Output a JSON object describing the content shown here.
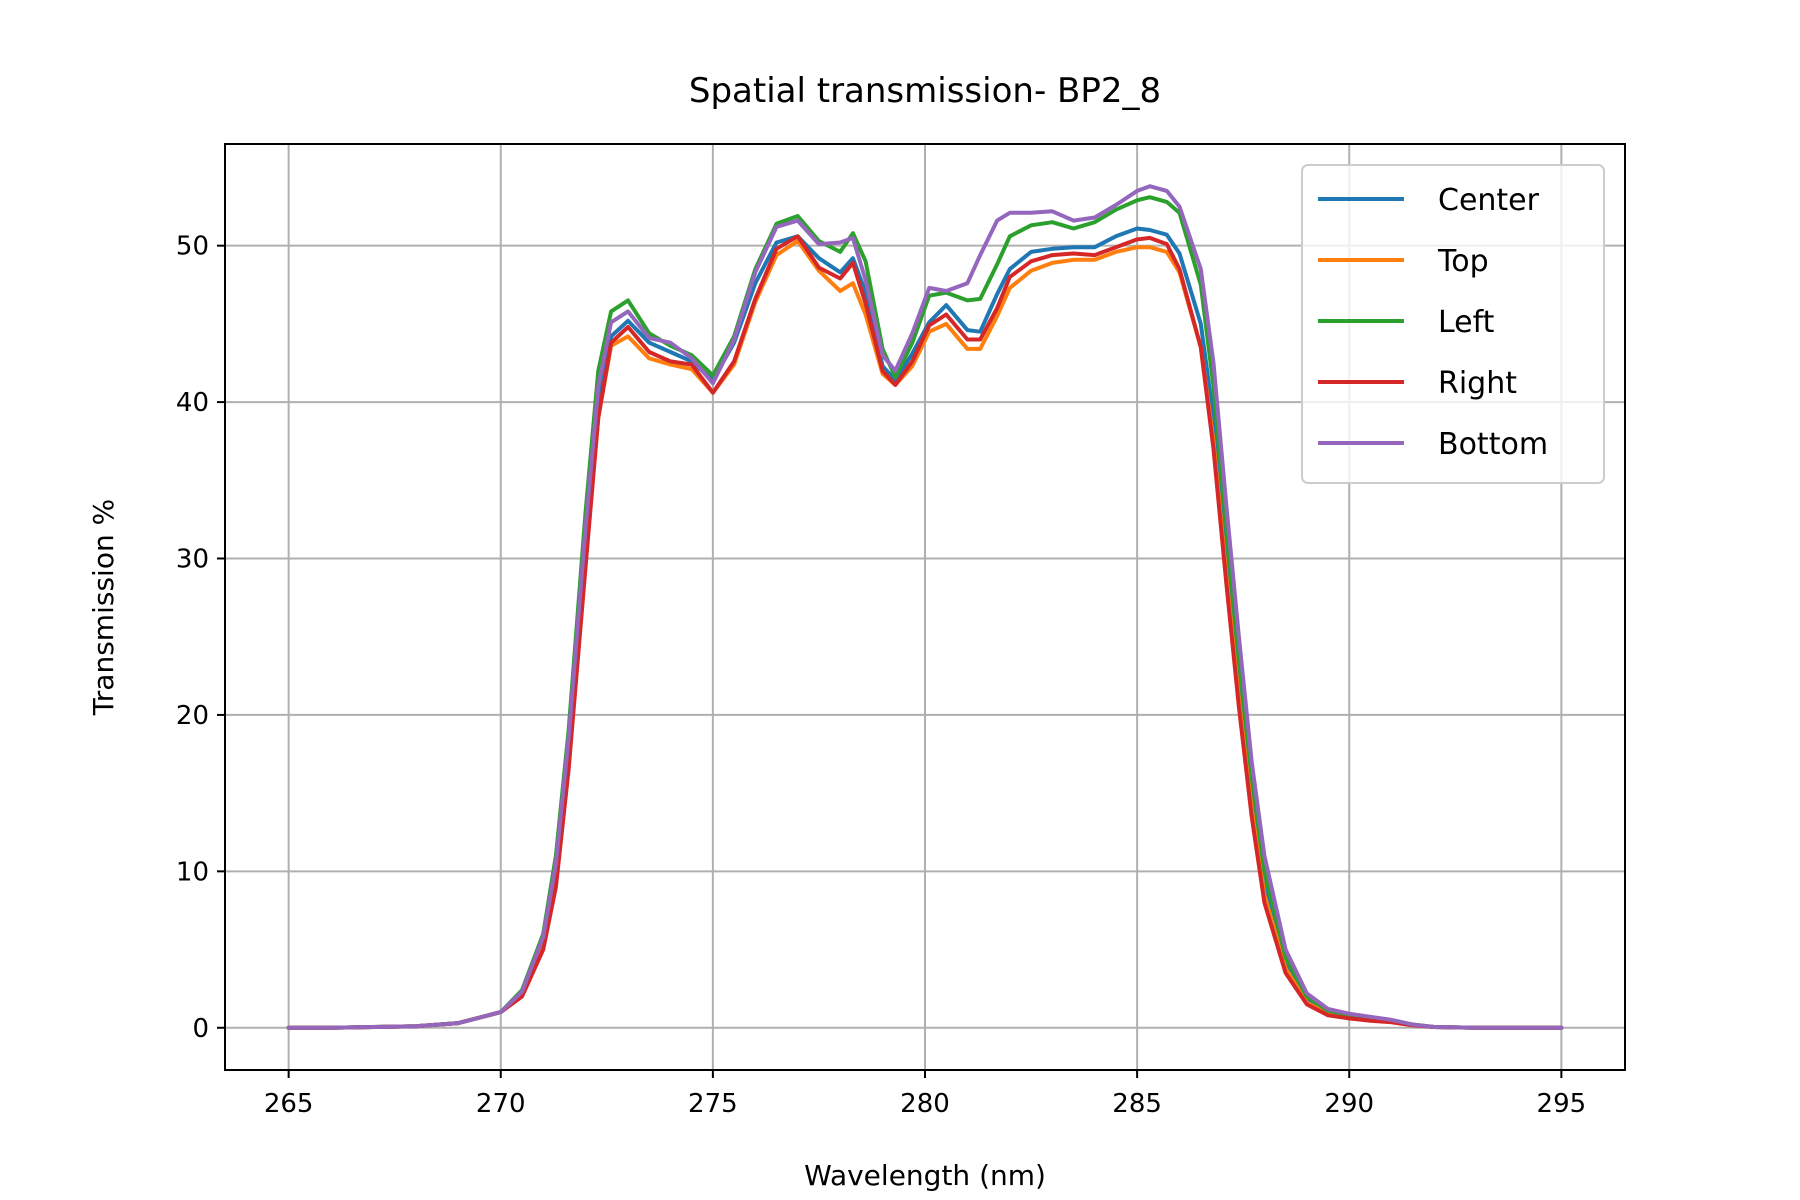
{
  "chart_data": {
    "type": "line",
    "title": "Spatial transmission- BP2_8",
    "xlabel": "Wavelength (nm)",
    "ylabel": "Transmission %",
    "xlim": [
      263.5,
      296.5
    ],
    "ylim": [
      -2.7,
      56.5
    ],
    "xticks": [
      265,
      270,
      275,
      280,
      285,
      290,
      295
    ],
    "yticks": [
      0,
      10,
      20,
      30,
      40,
      50
    ],
    "grid": true,
    "legend_position": "top-right",
    "series": [
      {
        "name": "Center",
        "color": "#1f77b4",
        "x": [
          265,
          266,
          267,
          268,
          269,
          270,
          270.5,
          271,
          271.3,
          271.6,
          272,
          272.3,
          272.6,
          273,
          273.5,
          274,
          274.5,
          275,
          275.5,
          276,
          276.5,
          277,
          277.5,
          278,
          278.3,
          278.6,
          279,
          279.3,
          279.7,
          280.1,
          280.5,
          281,
          281.3,
          281.7,
          282,
          282.5,
          283,
          283.5,
          284,
          284.5,
          285,
          285.3,
          285.7,
          286,
          286.5,
          286.8,
          287.1,
          287.4,
          287.7,
          288,
          288.5,
          289,
          289.5,
          290,
          290.5,
          291,
          291.5,
          292,
          293,
          294,
          295
        ],
        "y": [
          0,
          0,
          0.05,
          0.1,
          0.3,
          1.0,
          2.2,
          5.5,
          10,
          18,
          31,
          40,
          44.2,
          45.2,
          43.8,
          43.2,
          42.6,
          41.4,
          43.8,
          47.6,
          50.2,
          50.6,
          49.2,
          48.3,
          49.2,
          47,
          42.3,
          41.4,
          43.1,
          45.1,
          46.2,
          44.6,
          44.5,
          46.9,
          48.5,
          49.6,
          49.8,
          49.9,
          49.9,
          50.6,
          51.1,
          51,
          50.7,
          49.5,
          45,
          39,
          30,
          22,
          15,
          9,
          4,
          1.8,
          1,
          0.7,
          0.5,
          0.4,
          0.2,
          0.05,
          0,
          0,
          0
        ]
      },
      {
        "name": "Top",
        "color": "#ff7f0e",
        "x": [
          265,
          266,
          267,
          268,
          269,
          270,
          270.5,
          271,
          271.3,
          271.6,
          272,
          272.3,
          272.6,
          273,
          273.5,
          274,
          274.5,
          275,
          275.5,
          276,
          276.5,
          277,
          277.5,
          278,
          278.3,
          278.6,
          279,
          279.3,
          279.7,
          280.1,
          280.5,
          281,
          281.3,
          281.7,
          282,
          282.5,
          283,
          283.5,
          284,
          284.5,
          285,
          285.3,
          285.7,
          286,
          286.5,
          286.8,
          287.1,
          287.4,
          287.7,
          288,
          288.5,
          289,
          289.5,
          290,
          290.5,
          291,
          291.5,
          292,
          293,
          294,
          295
        ],
        "y": [
          0,
          0,
          0.05,
          0.1,
          0.3,
          1.0,
          2.2,
          5.3,
          9.5,
          17,
          30,
          39,
          43.6,
          44.2,
          42.8,
          42.4,
          42.1,
          40.6,
          42.4,
          46.4,
          49.4,
          50.3,
          48.4,
          47.1,
          47.6,
          45.6,
          41.8,
          41.1,
          42.3,
          44.5,
          45,
          43.4,
          43.4,
          45.5,
          47.3,
          48.4,
          48.9,
          49.1,
          49.1,
          49.6,
          49.9,
          49.9,
          49.6,
          48.3,
          43.5,
          37.5,
          29,
          21,
          14,
          8.5,
          3.8,
          1.6,
          0.9,
          0.6,
          0.5,
          0.4,
          0.2,
          0.05,
          0,
          0,
          0
        ]
      },
      {
        "name": "Left",
        "color": "#2ca02c",
        "x": [
          265,
          266,
          267,
          268,
          269,
          270,
          270.5,
          271,
          271.3,
          271.6,
          272,
          272.3,
          272.6,
          273,
          273.5,
          274,
          274.5,
          275,
          275.5,
          276,
          276.5,
          277,
          277.5,
          278,
          278.3,
          278.6,
          279,
          279.3,
          279.7,
          280.1,
          280.5,
          281,
          281.3,
          281.7,
          282,
          282.5,
          283,
          283.5,
          284,
          284.5,
          285,
          285.3,
          285.7,
          286,
          286.5,
          286.8,
          287.1,
          287.4,
          287.7,
          288,
          288.5,
          289,
          289.5,
          290,
          290.5,
          291,
          291.5,
          292,
          293,
          294,
          295
        ],
        "y": [
          0,
          0,
          0.05,
          0.1,
          0.3,
          1.0,
          2.4,
          6,
          11,
          19,
          33,
          42,
          45.8,
          46.5,
          44.4,
          43.6,
          43,
          41.7,
          44.2,
          48.5,
          51.4,
          51.9,
          50.3,
          49.6,
          50.8,
          49,
          43.4,
          41.6,
          43.8,
          46.8,
          47,
          46.5,
          46.6,
          48.8,
          50.6,
          51.3,
          51.5,
          51.1,
          51.5,
          52.3,
          52.9,
          53.1,
          52.8,
          52.1,
          47.5,
          41,
          32,
          23.5,
          16,
          10,
          4.5,
          2,
          1.1,
          0.8,
          0.6,
          0.45,
          0.2,
          0.05,
          0,
          0,
          0
        ]
      },
      {
        "name": "Right",
        "color": "#d62728",
        "x": [
          265,
          266,
          267,
          268,
          269,
          270,
          270.5,
          271,
          271.3,
          271.6,
          272,
          272.3,
          272.6,
          273,
          273.5,
          274,
          274.5,
          275,
          275.5,
          276,
          276.5,
          277,
          277.5,
          278,
          278.3,
          278.6,
          279,
          279.3,
          279.7,
          280.1,
          280.5,
          281,
          281.3,
          281.7,
          282,
          282.5,
          283,
          283.5,
          284,
          284.5,
          285,
          285.3,
          285.7,
          286,
          286.5,
          286.8,
          287.1,
          287.4,
          287.7,
          288,
          288.5,
          289,
          289.5,
          290,
          290.5,
          291,
          291.5,
          292,
          293,
          294,
          295
        ],
        "y": [
          0,
          0,
          0.05,
          0.1,
          0.3,
          1.0,
          2.0,
          5,
          9,
          16.5,
          29.5,
          39,
          43.8,
          44.8,
          43.2,
          42.6,
          42.4,
          40.6,
          42.6,
          46.6,
          49.8,
          50.6,
          48.6,
          47.9,
          48.9,
          46.3,
          42,
          41.1,
          42.6,
          44.9,
          45.6,
          44,
          44,
          46,
          48,
          49,
          49.4,
          49.5,
          49.4,
          49.9,
          50.4,
          50.5,
          50.1,
          48.5,
          43.5,
          37,
          28.5,
          20.5,
          13.5,
          8,
          3.5,
          1.5,
          0.8,
          0.6,
          0.45,
          0.35,
          0.15,
          0.05,
          0,
          0,
          0
        ]
      },
      {
        "name": "Bottom",
        "color": "#9467bd",
        "x": [
          265,
          266,
          267,
          268,
          269,
          270,
          270.5,
          271,
          271.3,
          271.6,
          272,
          272.3,
          272.6,
          273,
          273.5,
          274,
          274.5,
          275,
          275.5,
          276,
          276.5,
          277,
          277.5,
          278,
          278.3,
          278.6,
          279,
          279.3,
          279.7,
          280.1,
          280.5,
          281,
          281.3,
          281.7,
          282,
          282.5,
          283,
          283.5,
          284,
          284.5,
          285,
          285.3,
          285.7,
          286,
          286.5,
          286.8,
          287.1,
          287.4,
          287.7,
          288,
          288.5,
          289,
          289.5,
          290,
          290.5,
          291,
          291.5,
          292,
          293,
          294,
          295
        ],
        "y": [
          0,
          0,
          0.05,
          0.1,
          0.3,
          1.0,
          2.3,
          5.8,
          10.5,
          18.5,
          32,
          41,
          45.1,
          45.8,
          44.1,
          43.8,
          42.8,
          41.2,
          44,
          48.3,
          51.2,
          51.6,
          50.1,
          50.2,
          50.5,
          47.8,
          43,
          42,
          44.4,
          47.3,
          47.1,
          47.6,
          49.4,
          51.6,
          52.1,
          52.1,
          52.2,
          51.6,
          51.8,
          52.6,
          53.5,
          53.8,
          53.5,
          52.5,
          48.5,
          42.5,
          33.5,
          25,
          17,
          11,
          5,
          2.2,
          1.2,
          0.9,
          0.7,
          0.5,
          0.2,
          0.05,
          0,
          0,
          0
        ]
      }
    ]
  }
}
